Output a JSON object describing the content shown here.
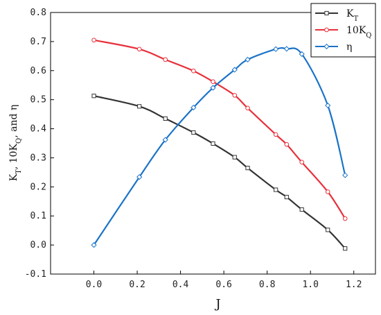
{
  "chart_data": {
    "type": "line",
    "title": "",
    "xlabel": "J",
    "ylabel": "K_T, 10K_Q, and η",
    "xlim": [
      -0.2,
      1.3
    ],
    "ylim": [
      -0.1,
      0.8
    ],
    "x_ticks": [
      "0.0",
      "0.2",
      "0.4",
      "0.6",
      "0.8",
      "1.0",
      "1.2"
    ],
    "y_ticks": [
      "-0.1",
      "0.0",
      "0.1",
      "0.2",
      "0.3",
      "0.4",
      "0.5",
      "0.6",
      "0.7",
      "0.8"
    ],
    "grid": false,
    "legend_position": "top-right",
    "series": [
      {
        "name": "K_T",
        "color": "#333333",
        "marker": "square",
        "x": [
          0.0,
          0.21,
          0.33,
          0.46,
          0.55,
          0.65,
          0.71,
          0.84,
          0.89,
          0.96,
          1.08,
          1.16
        ],
        "y": [
          0.513,
          0.477,
          0.435,
          0.387,
          0.349,
          0.302,
          0.265,
          0.19,
          0.165,
          0.122,
          0.052,
          -0.012
        ]
      },
      {
        "name": "10K_Q",
        "color": "#e8303a",
        "marker": "circle",
        "x": [
          0.0,
          0.21,
          0.33,
          0.46,
          0.55,
          0.65,
          0.71,
          0.84,
          0.89,
          0.96,
          1.08,
          1.16
        ],
        "y": [
          0.705,
          0.674,
          0.638,
          0.599,
          0.562,
          0.515,
          0.471,
          0.38,
          0.346,
          0.285,
          0.183,
          0.091
        ]
      },
      {
        "name": "η",
        "color": "#1a73c8",
        "marker": "diamond",
        "x": [
          0.0,
          0.21,
          0.33,
          0.46,
          0.55,
          0.65,
          0.71,
          0.84,
          0.89,
          0.96,
          1.08,
          1.16
        ],
        "y": [
          0.0,
          0.234,
          0.362,
          0.473,
          0.541,
          0.603,
          0.638,
          0.674,
          0.675,
          0.657,
          0.48,
          0.24
        ]
      }
    ],
    "legend": [
      {
        "main": "K",
        "sub": "T"
      },
      {
        "main": "10K",
        "sub": "Q"
      },
      {
        "main": "η",
        "sub": ""
      }
    ],
    "ylabel_parts": {
      "k": "K",
      "t": "T",
      "mid": ", 10K",
      "q": "Q",
      "end": ", and η"
    }
  }
}
